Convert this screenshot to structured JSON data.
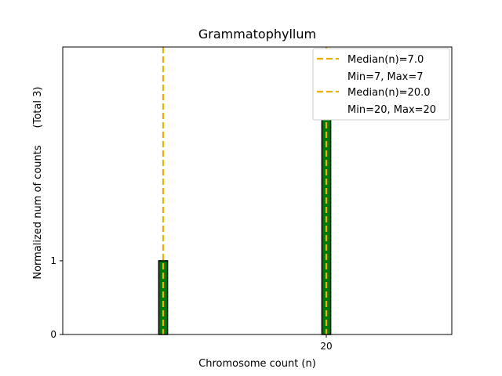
{
  "chart_data": {
    "type": "bar",
    "title": "Grammatophyllum",
    "xlabel": "Chromosome count (n)",
    "ylabel": "Normalized num of counts",
    "ylabel_note": "(Total 3)",
    "xlim": [
      -1,
      30
    ],
    "ylim": [
      0,
      3.9
    ],
    "x_ticks": [
      20
    ],
    "y_ticks": [
      0,
      1
    ],
    "bar_width": 0.7,
    "bars": [
      {
        "x": 7,
        "value": 1
      },
      {
        "x": 20,
        "value": 3
      }
    ],
    "bar_color": "#007a00",
    "bar_edge_color": "#000000",
    "median_lines": [
      {
        "x": 7,
        "label": "Median(n)=7.0",
        "sublabel": "Min=7, Max=7"
      },
      {
        "x": 20,
        "label": "Median(n)=20.0",
        "sublabel": "Min=20, Max=20"
      }
    ],
    "median_color": "#f0ad00",
    "legend_position": "top-right",
    "grid": false
  }
}
